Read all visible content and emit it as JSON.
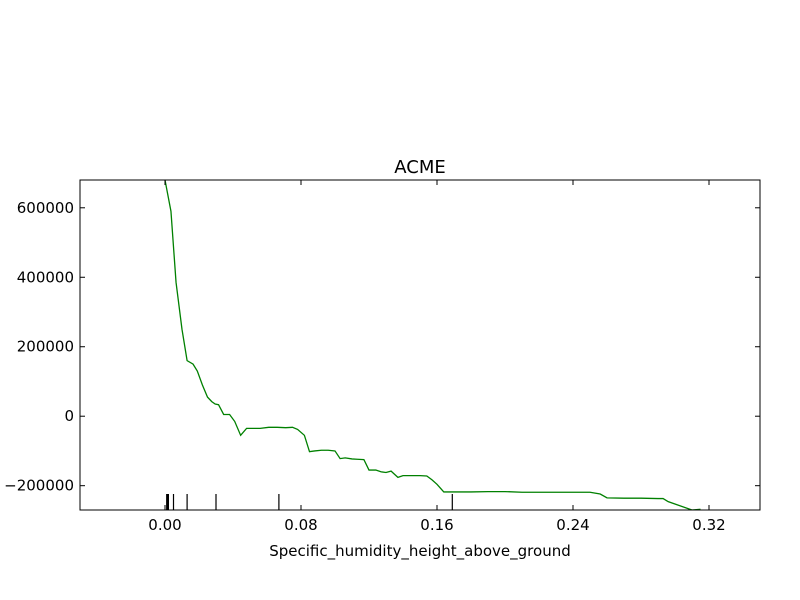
{
  "chart_data": {
    "type": "line",
    "title": "ACME",
    "xlabel": "Specific_humidity_height_above_ground",
    "ylabel": "",
    "xlim": [
      -0.05,
      0.35
    ],
    "ylim": [
      -270000,
      680000
    ],
    "grid": false,
    "xticks": [
      0.0,
      0.08,
      0.16,
      0.24,
      0.32
    ],
    "xtick_labels": [
      "0.00",
      "0.08",
      "0.16",
      "0.24",
      "0.32"
    ],
    "yticks": [
      -200000,
      0,
      200000,
      400000,
      600000
    ],
    "ytick_labels": [
      "−200000",
      "0",
      "200000",
      "400000",
      "600000"
    ],
    "series": [
      {
        "color": "#008000",
        "x": [
          0.0,
          0.0035,
          0.0065,
          0.01,
          0.013,
          0.0165,
          0.019,
          0.022,
          0.025,
          0.0275,
          0.0295,
          0.0315,
          0.0345,
          0.038,
          0.041,
          0.0445,
          0.048,
          0.052,
          0.056,
          0.061,
          0.066,
          0.071,
          0.075,
          0.078,
          0.082,
          0.085,
          0.088,
          0.092,
          0.096,
          0.1,
          0.103,
          0.106,
          0.11,
          0.113,
          0.117,
          0.12,
          0.124,
          0.127,
          0.13,
          0.133,
          0.137,
          0.14,
          0.145,
          0.15,
          0.154,
          0.157,
          0.16,
          0.164,
          0.168,
          0.172,
          0.176,
          0.18,
          0.19,
          0.2,
          0.21,
          0.22,
          0.23,
          0.24,
          0.245,
          0.25,
          0.256,
          0.26,
          0.27,
          0.28,
          0.29,
          0.293,
          0.296,
          0.31,
          0.315
        ],
        "y": [
          680000,
          590000,
          385000,
          250000,
          160000,
          150000,
          130000,
          90000,
          55000,
          42000,
          35000,
          33000,
          5000,
          5000,
          -15000,
          -55000,
          -35000,
          -35000,
          -35000,
          -32000,
          -32000,
          -33000,
          -32000,
          -38000,
          -55000,
          -102000,
          -100000,
          -98000,
          -98000,
          -100000,
          -122000,
          -120000,
          -123000,
          -124000,
          -125000,
          -155000,
          -155000,
          -160000,
          -162000,
          -158000,
          -176000,
          -171000,
          -171000,
          -171000,
          -172000,
          -183000,
          -196000,
          -218000,
          -218000,
          -218000,
          -218000,
          -218000,
          -217000,
          -217000,
          -219000,
          -219000,
          -219000,
          -219000,
          -219000,
          -219000,
          -224000,
          -235000,
          -236000,
          -236000,
          -237000,
          -237000,
          -246000,
          -270000,
          -268000
        ]
      }
    ],
    "rug_ticks": [
      0.001,
      0.0015,
      0.002,
      0.005,
      0.013,
      0.03,
      0.067,
      0.169
    ]
  }
}
